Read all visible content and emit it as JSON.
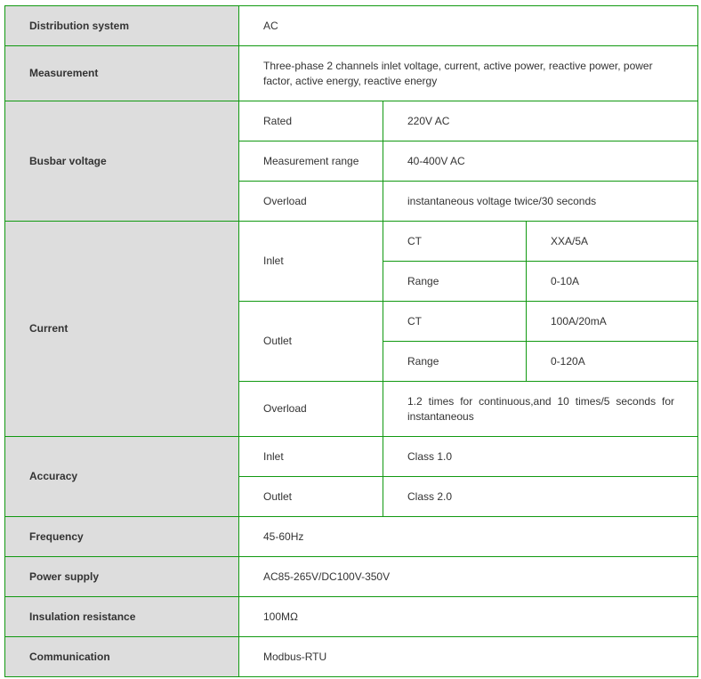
{
  "rows": {
    "distribution": {
      "label": "Distribution system",
      "value": "AC"
    },
    "measurement": {
      "label": "Measurement",
      "value": "Three-phase 2 channels inlet voltage, current, active power, reactive power, power factor, active energy, reactive energy"
    },
    "busbar": {
      "label": "Busbar voltage",
      "rated": "Rated",
      "rated_value": "220V AC",
      "range": "Measurement range",
      "range_value": "40-400V AC",
      "overload": "Overload",
      "overload_value": "instantaneous voltage twice/30 seconds"
    },
    "current": {
      "label": "Current",
      "inlet": "Inlet",
      "inlet_ct": "CT",
      "inlet_ct_value": "XXA/5A",
      "inlet_range": "Range",
      "inlet_range_value": "0-10A",
      "outlet": "Outlet",
      "outlet_ct": "CT",
      "outlet_ct_value": "100A/20mA",
      "outlet_range": "Range",
      "outlet_range_value": "0-120A",
      "overload": "Overload",
      "overload_value": "1.2 times for continuous,and 10 times/5 seconds for instantaneous"
    },
    "accuracy": {
      "label": "Accuracy",
      "inlet": "Inlet",
      "inlet_value": "Class 1.0",
      "outlet": "Outlet",
      "outlet_value": "Class 2.0"
    },
    "frequency": {
      "label": "Frequency",
      "value": "45-60Hz"
    },
    "power": {
      "label": "Power supply",
      "value": "AC85-265V/DC100V-350V"
    },
    "insulation": {
      "label": "Insulation resistance",
      "value": "100MΩ"
    },
    "communication": {
      "label": "Communication",
      "value": "Modbus-RTU"
    }
  }
}
